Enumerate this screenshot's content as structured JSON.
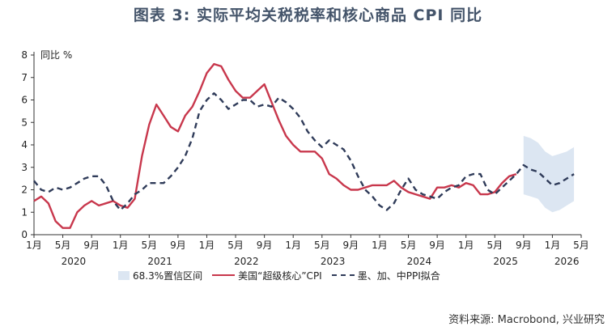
{
  "title": "图表 3:  实际平均关税税率和核心商品 CPI 同比",
  "source": "资料来源: Macrobond, 兴业研究",
  "colors": {
    "title": "#44546A",
    "band": "#DCE6F2",
    "us_cpi": "#C8374C",
    "ppi_fit": "#2F3B59",
    "axis": "#333333"
  },
  "chart_data": {
    "type": "line",
    "ylabel": "同比 %",
    "ylim": [
      0,
      8
    ],
    "yticks": [
      0,
      1,
      2,
      3,
      4,
      5,
      6,
      7,
      8
    ],
    "x_month_ticks": [
      "1月",
      "5月",
      "9月",
      "1月",
      "5月",
      "9月",
      "1月",
      "5月",
      "9月",
      "1月",
      "5月",
      "9月",
      "1月",
      "5月",
      "9月",
      "1月",
      "5月",
      "9月",
      "1月",
      "5月"
    ],
    "year_labels": [
      "2020",
      "2021",
      "2022",
      "2023",
      "2024",
      "2025",
      "2026"
    ],
    "xlim": [
      "2020-01",
      "2026-05"
    ],
    "legend": [
      "68.3%置信区间",
      "美国“超级核心”CPI",
      "墨、加、中PPI拟合"
    ],
    "series": [
      {
        "name": "美国“超级核心”CPI",
        "style": "solid",
        "points": [
          [
            "2020-01",
            1.5
          ],
          [
            "2020-02",
            1.7
          ],
          [
            "2020-03",
            1.4
          ],
          [
            "2020-04",
            0.6
          ],
          [
            "2020-05",
            0.3
          ],
          [
            "2020-06",
            0.3
          ],
          [
            "2020-07",
            1.0
          ],
          [
            "2020-08",
            1.3
          ],
          [
            "2020-09",
            1.5
          ],
          [
            "2020-10",
            1.3
          ],
          [
            "2020-11",
            1.4
          ],
          [
            "2020-12",
            1.5
          ],
          [
            "2021-01",
            1.3
          ],
          [
            "2021-02",
            1.2
          ],
          [
            "2021-03",
            1.6
          ],
          [
            "2021-04",
            3.5
          ],
          [
            "2021-05",
            4.9
          ],
          [
            "2021-06",
            5.8
          ],
          [
            "2021-07",
            5.3
          ],
          [
            "2021-08",
            4.8
          ],
          [
            "2021-09",
            4.6
          ],
          [
            "2021-10",
            5.3
          ],
          [
            "2021-11",
            5.7
          ],
          [
            "2021-12",
            6.4
          ],
          [
            "2022-01",
            7.2
          ],
          [
            "2022-02",
            7.6
          ],
          [
            "2022-03",
            7.5
          ],
          [
            "2022-04",
            6.9
          ],
          [
            "2022-05",
            6.4
          ],
          [
            "2022-06",
            6.1
          ],
          [
            "2022-07",
            6.1
          ],
          [
            "2022-08",
            6.4
          ],
          [
            "2022-09",
            6.7
          ],
          [
            "2022-10",
            5.9
          ],
          [
            "2022-11",
            5.1
          ],
          [
            "2022-12",
            4.4
          ],
          [
            "2023-01",
            4.0
          ],
          [
            "2023-02",
            3.7
          ],
          [
            "2023-03",
            3.7
          ],
          [
            "2023-04",
            3.7
          ],
          [
            "2023-05",
            3.4
          ],
          [
            "2023-06",
            2.7
          ],
          [
            "2023-07",
            2.5
          ],
          [
            "2023-08",
            2.2
          ],
          [
            "2023-09",
            2.0
          ],
          [
            "2023-10",
            2.0
          ],
          [
            "2023-11",
            2.1
          ],
          [
            "2023-12",
            2.2
          ],
          [
            "2024-01",
            2.2
          ],
          [
            "2024-02",
            2.2
          ],
          [
            "2024-03",
            2.4
          ],
          [
            "2024-04",
            2.1
          ],
          [
            "2024-05",
            1.9
          ],
          [
            "2024-06",
            1.8
          ],
          [
            "2024-07",
            1.7
          ],
          [
            "2024-08",
            1.6
          ],
          [
            "2024-09",
            2.1
          ],
          [
            "2024-10",
            2.1
          ],
          [
            "2024-11",
            2.2
          ],
          [
            "2024-12",
            2.1
          ],
          [
            "2025-01",
            2.3
          ],
          [
            "2025-02",
            2.2
          ],
          [
            "2025-03",
            1.8
          ],
          [
            "2025-04",
            1.8
          ],
          [
            "2025-05",
            1.9
          ],
          [
            "2025-06",
            2.3
          ],
          [
            "2025-07",
            2.6
          ],
          [
            "2025-08",
            2.7
          ]
        ]
      },
      {
        "name": "墨、加、中PPI拟合",
        "style": "dashed",
        "points": [
          [
            "2020-01",
            2.4
          ],
          [
            "2020-02",
            2.0
          ],
          [
            "2020-03",
            1.9
          ],
          [
            "2020-04",
            2.1
          ],
          [
            "2020-05",
            2.0
          ],
          [
            "2020-06",
            2.1
          ],
          [
            "2020-07",
            2.3
          ],
          [
            "2020-08",
            2.5
          ],
          [
            "2020-09",
            2.6
          ],
          [
            "2020-10",
            2.6
          ],
          [
            "2020-11",
            2.2
          ],
          [
            "2020-12",
            1.5
          ],
          [
            "2021-01",
            1.1
          ],
          [
            "2021-02",
            1.4
          ],
          [
            "2021-03",
            1.8
          ],
          [
            "2021-04",
            2.0
          ],
          [
            "2021-05",
            2.3
          ],
          [
            "2021-06",
            2.3
          ],
          [
            "2021-07",
            2.3
          ],
          [
            "2021-08",
            2.6
          ],
          [
            "2021-09",
            3.0
          ],
          [
            "2021-10",
            3.5
          ],
          [
            "2021-11",
            4.3
          ],
          [
            "2021-12",
            5.5
          ],
          [
            "2022-01",
            6.0
          ],
          [
            "2022-02",
            6.3
          ],
          [
            "2022-03",
            6.0
          ],
          [
            "2022-04",
            5.6
          ],
          [
            "2022-05",
            5.8
          ],
          [
            "2022-06",
            6.0
          ],
          [
            "2022-07",
            6.0
          ],
          [
            "2022-08",
            5.7
          ],
          [
            "2022-09",
            5.8
          ],
          [
            "2022-10",
            5.7
          ],
          [
            "2022-11",
            6.1
          ],
          [
            "2022-12",
            5.9
          ],
          [
            "2023-01",
            5.6
          ],
          [
            "2023-02",
            5.2
          ],
          [
            "2023-03",
            4.6
          ],
          [
            "2023-04",
            4.2
          ],
          [
            "2023-05",
            3.9
          ],
          [
            "2023-06",
            4.2
          ],
          [
            "2023-07",
            4.0
          ],
          [
            "2023-08",
            3.8
          ],
          [
            "2023-09",
            3.3
          ],
          [
            "2023-10",
            2.6
          ],
          [
            "2023-11",
            2.0
          ],
          [
            "2023-12",
            1.7
          ],
          [
            "2024-01",
            1.3
          ],
          [
            "2024-02",
            1.1
          ],
          [
            "2024-03",
            1.4
          ],
          [
            "2024-04",
            2.0
          ],
          [
            "2024-05",
            2.5
          ],
          [
            "2024-06",
            2.0
          ],
          [
            "2024-07",
            1.8
          ],
          [
            "2024-08",
            1.7
          ],
          [
            "2024-09",
            1.6
          ],
          [
            "2024-10",
            1.9
          ],
          [
            "2024-11",
            2.1
          ],
          [
            "2024-12",
            2.2
          ],
          [
            "2025-01",
            2.6
          ],
          [
            "2025-02",
            2.7
          ],
          [
            "2025-03",
            2.7
          ],
          [
            "2025-04",
            2.0
          ],
          [
            "2025-05",
            1.8
          ],
          [
            "2025-06",
            2.1
          ],
          [
            "2025-07",
            2.4
          ],
          [
            "2025-08",
            2.7
          ],
          [
            "2025-09",
            3.1
          ],
          [
            "2025-10",
            2.9
          ],
          [
            "2025-11",
            2.8
          ],
          [
            "2025-12",
            2.5
          ],
          [
            "2026-01",
            2.2
          ],
          [
            "2026-02",
            2.3
          ],
          [
            "2026-03",
            2.5
          ],
          [
            "2026-04",
            2.7
          ]
        ]
      }
    ],
    "band": {
      "name": "68.3%置信区间",
      "points": [
        [
          "2025-09",
          1.8,
          4.4
        ],
        [
          "2025-10",
          1.7,
          4.3
        ],
        [
          "2025-11",
          1.6,
          4.1
        ],
        [
          "2025-12",
          1.2,
          3.7
        ],
        [
          "2026-01",
          1.0,
          3.5
        ],
        [
          "2026-02",
          1.1,
          3.6
        ],
        [
          "2026-03",
          1.3,
          3.7
        ],
        [
          "2026-04",
          1.5,
          3.9
        ]
      ]
    }
  }
}
